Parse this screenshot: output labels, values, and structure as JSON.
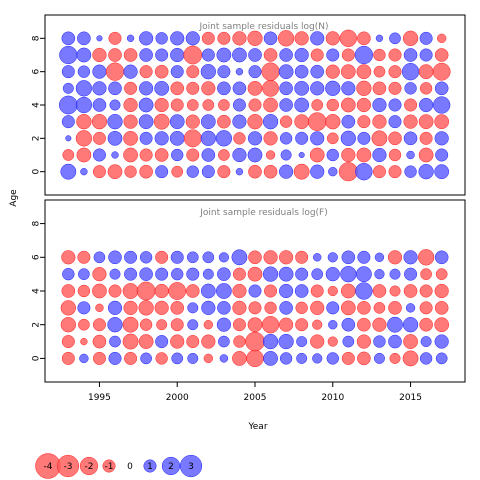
{
  "colors": {
    "negative_fill": "#FF5C5C",
    "positive_fill": "#5C5CFF",
    "negative_stroke": "#FF0000",
    "positive_stroke": "#0000FF",
    "title_text": "#808080"
  },
  "chart_data": {
    "type": "bubble-residuals",
    "xlabel": "Year",
    "ylabel": "Age",
    "x_ticks": [
      1995,
      2000,
      2005,
      2010,
      2015
    ],
    "y_ticks": [
      0,
      2,
      4,
      6,
      8
    ],
    "x_range": [
      1991.5,
      2018.5
    ],
    "legend": {
      "values": [
        -4,
        -3,
        -2,
        -1,
        0,
        1,
        2,
        3
      ],
      "labels": [
        "-4",
        "-3",
        "-2",
        "-1",
        "0",
        "1",
        "2",
        "3"
      ]
    },
    "years": [
      1993,
      1994,
      1995,
      1996,
      1997,
      1998,
      1999,
      2000,
      2001,
      2002,
      2003,
      2004,
      2005,
      2006,
      2007,
      2008,
      2009,
      2010,
      2011,
      2012,
      2013,
      2014,
      2015,
      2016,
      2017
    ],
    "panels": [
      {
        "title": "Joint sample residuals log(N)",
        "y_range": [
          -1.4,
          9.4
        ],
        "ages": [
          0,
          1,
          2,
          3,
          4,
          5,
          6,
          7,
          8
        ],
        "residuals": [
          [
            1.5,
            0.3,
            -1.0,
            -1.3,
            -0.9,
            -1.1,
            1.0,
            -0.8,
            0.9,
            1.0,
            -1.0,
            0.3,
            -1.1,
            -1.1,
            1.2,
            -1.5,
            1.2,
            0.5,
            -2.2,
            1.8,
            -1.0,
            -1.0,
            0.9,
            1.4,
            1.3
          ],
          [
            -0.8,
            -1.3,
            1.0,
            0.3,
            -1.3,
            -1.0,
            -1.1,
            0.9,
            -1.0,
            1.1,
            -0.8,
            1.2,
            1.3,
            -0.5,
            0.7,
            0.2,
            -1.3,
            0.9,
            -1.2,
            -1.3,
            1.2,
            -0.9,
            0.4,
            -1.3,
            1.0
          ],
          [
            0.2,
            -1.6,
            -1.0,
            1.3,
            -1.3,
            1.0,
            1.2,
            1.3,
            -1.9,
            1.4,
            1.6,
            -0.9,
            1.2,
            -1.2,
            0.9,
            1.0,
            1.2,
            -0.8,
            1.4,
            1.0,
            -1.5,
            -1.1,
            1.1,
            -1.0,
            1.2
          ],
          [
            1.0,
            -1.4,
            -1.4,
            1.4,
            -1.2,
            1.3,
            -1.5,
            1.3,
            -1.2,
            1.3,
            -1.1,
            1.2,
            -1.4,
            1.4,
            -0.9,
            -1.3,
            -2.1,
            -1.4,
            1.1,
            -1.0,
            -1.2,
            1.0,
            -1.2,
            -1.3,
            -1.3
          ],
          [
            2.1,
            1.6,
            1.1,
            0.7,
            -1.2,
            1.3,
            -1.2,
            -1.0,
            -0.8,
            -0.8,
            -0.8,
            1.0,
            -1.0,
            -1.3,
            1.1,
            1.3,
            -0.8,
            -0.9,
            -1.3,
            -1.2,
            1.2,
            1.0,
            -1.0,
            1.2,
            1.8
          ],
          [
            0.7,
            1.6,
            1.2,
            1.1,
            -1.0,
            1.2,
            1.3,
            -1.1,
            -1.0,
            -1.2,
            1.1,
            1.1,
            -1.3,
            -1.7,
            1.1,
            1.3,
            1.2,
            1.4,
            1.2,
            -1.4,
            -1.1,
            -1.0,
            0.9,
            -0.9,
            1.1
          ],
          [
            1.0,
            0.9,
            1.2,
            -2.0,
            1.2,
            -1.0,
            -1.1,
            1.0,
            -1.0,
            1.4,
            1.0,
            0.3,
            1.0,
            -2.0,
            1.3,
            1.1,
            1.1,
            -1.2,
            -1.3,
            -1.3,
            -0.8,
            -1.0,
            1.8,
            -1.3,
            -1.9
          ],
          [
            2.0,
            1.3,
            -1.2,
            -1.1,
            -1.1,
            1.1,
            1.0,
            1.2,
            -2.1,
            1.0,
            1.3,
            1.3,
            1.1,
            -1.1,
            1.1,
            1.2,
            -1.0,
            1.0,
            -1.0,
            2.0,
            -0.9,
            -1.0,
            1.1,
            1.0,
            -1.1
          ],
          [
            1.1,
            1.1,
            0.2,
            -1.0,
            0.3,
            1.2,
            0.9,
            1.2,
            1.2,
            -1.0,
            -1.0,
            -1.2,
            -1.4,
            1.1,
            -1.6,
            -1.2,
            1.2,
            -1.2,
            -1.8,
            -1.1,
            0.3,
            0.8,
            -1.4,
            1.0,
            -0.5
          ]
        ]
      },
      {
        "title": "Joint sample residuals log(F)",
        "y_range": [
          -1.4,
          9.4
        ],
        "ages": [
          0,
          1,
          2,
          3,
          4,
          5,
          6
        ],
        "residuals": [
          [
            -1.0,
            0.5,
            -1.0,
            1.0,
            -1.0,
            0.8,
            -0.9,
            0.8,
            0.7,
            -0.5,
            0.4,
            -1.3,
            -1.8,
            1.3,
            0.9,
            0.7,
            0.6,
            0.9,
            -1.0,
            -1.1,
            0.7,
            -0.7,
            -1.5,
            0.9,
            0.8
          ],
          [
            -1.0,
            -0.3,
            -1.1,
            0.8,
            -1.5,
            -1.3,
            1.0,
            -1.2,
            -1.0,
            -1.2,
            0.8,
            -0.9,
            -2.3,
            1.4,
            1.4,
            0.7,
            -1.2,
            -0.6,
            0.8,
            -1.2,
            0.9,
            1.1,
            -1.3,
            0.7,
            1.2
          ],
          [
            -1.4,
            -0.8,
            -1.0,
            1.4,
            -1.5,
            -0.9,
            -0.7,
            -1.0,
            0.7,
            -0.5,
            1.2,
            -1.0,
            -1.3,
            -1.8,
            -1.2,
            -1.0,
            -0.6,
            0.5,
            1.1,
            -1.1,
            -1.2,
            1.5,
            1.4,
            -1.1,
            -1.3
          ],
          [
            -1.4,
            1.0,
            -0.4,
            1.2,
            -1.2,
            -1.4,
            -1.2,
            -1.1,
            0.7,
            1.2,
            1.1,
            -1.2,
            -1.0,
            -0.9,
            1.1,
            -0.9,
            -1.2,
            1.0,
            -1.3,
            -1.1,
            -0.8,
            -1.1,
            0.5,
            -1.0,
            -1.1
          ],
          [
            -1.1,
            -0.9,
            -1.3,
            -1.0,
            -1.5,
            -2.1,
            -1.2,
            -1.9,
            -1.1,
            1.3,
            1.5,
            -1.2,
            1.0,
            -1.0,
            1.2,
            1.1,
            -1.0,
            -0.6,
            -1.3,
            1.8,
            -1.1,
            -0.7,
            -1.1,
            -1.0,
            -1.2
          ],
          [
            0.9,
            0.8,
            -1.2,
            0.7,
            1.0,
            1.1,
            1.0,
            0.9,
            1.0,
            0.7,
            1.1,
            -1.0,
            -1.3,
            1.4,
            1.3,
            1.0,
            0.8,
            1.2,
            1.6,
            1.5,
            0.6,
            0.7,
            1.0,
            -0.8,
            -0.8
          ],
          [
            -1.2,
            -1.0,
            0.8,
            1.1,
            1.0,
            0.9,
            -1.0,
            1.0,
            0.8,
            0.8,
            0.6,
            1.5,
            -1.1,
            -1.2,
            -1.2,
            -1.0,
            0.4,
            0.6,
            1.1,
            1.0,
            0.5,
            -1.2,
            1.2,
            -1.6,
            1.1
          ]
        ]
      }
    ]
  }
}
